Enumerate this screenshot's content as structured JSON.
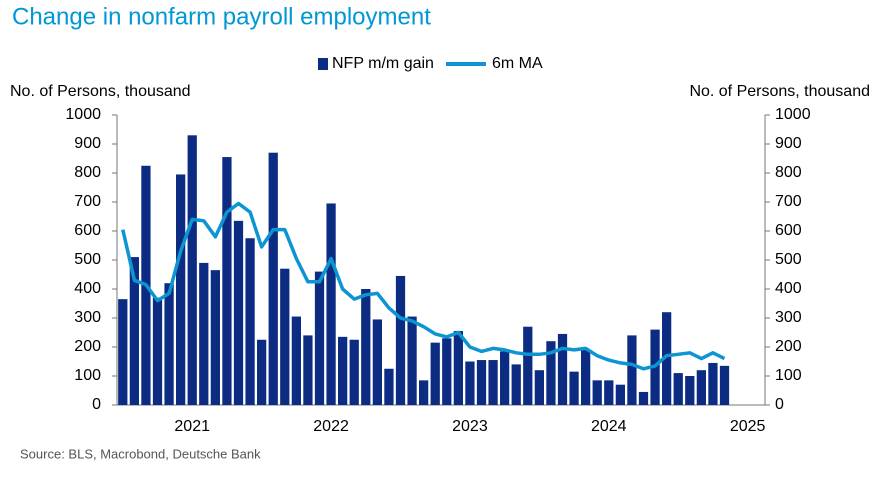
{
  "chart_data": {
    "type": "bar-line",
    "title": "Change in nonfarm payroll employment",
    "ylabel": "No. of Persons, thousand",
    "y2label": "No. of Persons, thousand",
    "source": "Source: BLS, Macrobond, Deutsche Bank",
    "categories": [
      null,
      null,
      null,
      null,
      null,
      null,
      "2021",
      null,
      null,
      null,
      null,
      null,
      null,
      null,
      null,
      null,
      null,
      null,
      "2022",
      null,
      null,
      null,
      null,
      null,
      null,
      null,
      null,
      null,
      null,
      null,
      "2023",
      null,
      null,
      null,
      null,
      null,
      null,
      null,
      null,
      null,
      null,
      null,
      "2024",
      null,
      null,
      null,
      null,
      null,
      null,
      null,
      null,
      null,
      null,
      null,
      "2025",
      null
    ],
    "series": [
      {
        "name": "NFP m/m gain",
        "type": "bar",
        "color": "#0b2c82",
        "values": [
          365,
          510,
          825,
          370,
          420,
          795,
          930,
          490,
          465,
          855,
          635,
          575,
          225,
          870,
          470,
          305,
          240,
          460,
          695,
          235,
          225,
          400,
          295,
          125,
          445,
          305,
          85,
          215,
          230,
          255,
          150,
          155,
          155,
          185,
          140,
          270,
          120,
          220,
          245,
          115,
          190,
          85,
          85,
          70,
          240,
          45,
          260,
          320,
          110,
          100,
          120,
          145,
          135,
          null,
          null,
          null
        ]
      },
      {
        "name": "6m MA",
        "type": "line",
        "color": "#0c95d2",
        "values": [
          605,
          430,
          415,
          360,
          385,
          530,
          640,
          635,
          580,
          665,
          695,
          665,
          545,
          605,
          605,
          505,
          425,
          425,
          505,
          400,
          365,
          380,
          385,
          335,
          300,
          290,
          270,
          245,
          235,
          250,
          200,
          185,
          195,
          190,
          180,
          175,
          175,
          180,
          195,
          190,
          195,
          170,
          155,
          145,
          140,
          125,
          135,
          170,
          175,
          180,
          160,
          180,
          160,
          null,
          null,
          null
        ]
      }
    ],
    "ylim": [
      0,
      1000
    ],
    "yticks": [
      0,
      100,
      200,
      300,
      400,
      500,
      600,
      700,
      800,
      900,
      1000
    ],
    "y2lim": [
      0,
      1000
    ],
    "y2ticks": [
      0,
      100,
      200,
      300,
      400,
      500,
      600,
      700,
      800,
      900,
      1000
    ],
    "grid": false
  }
}
